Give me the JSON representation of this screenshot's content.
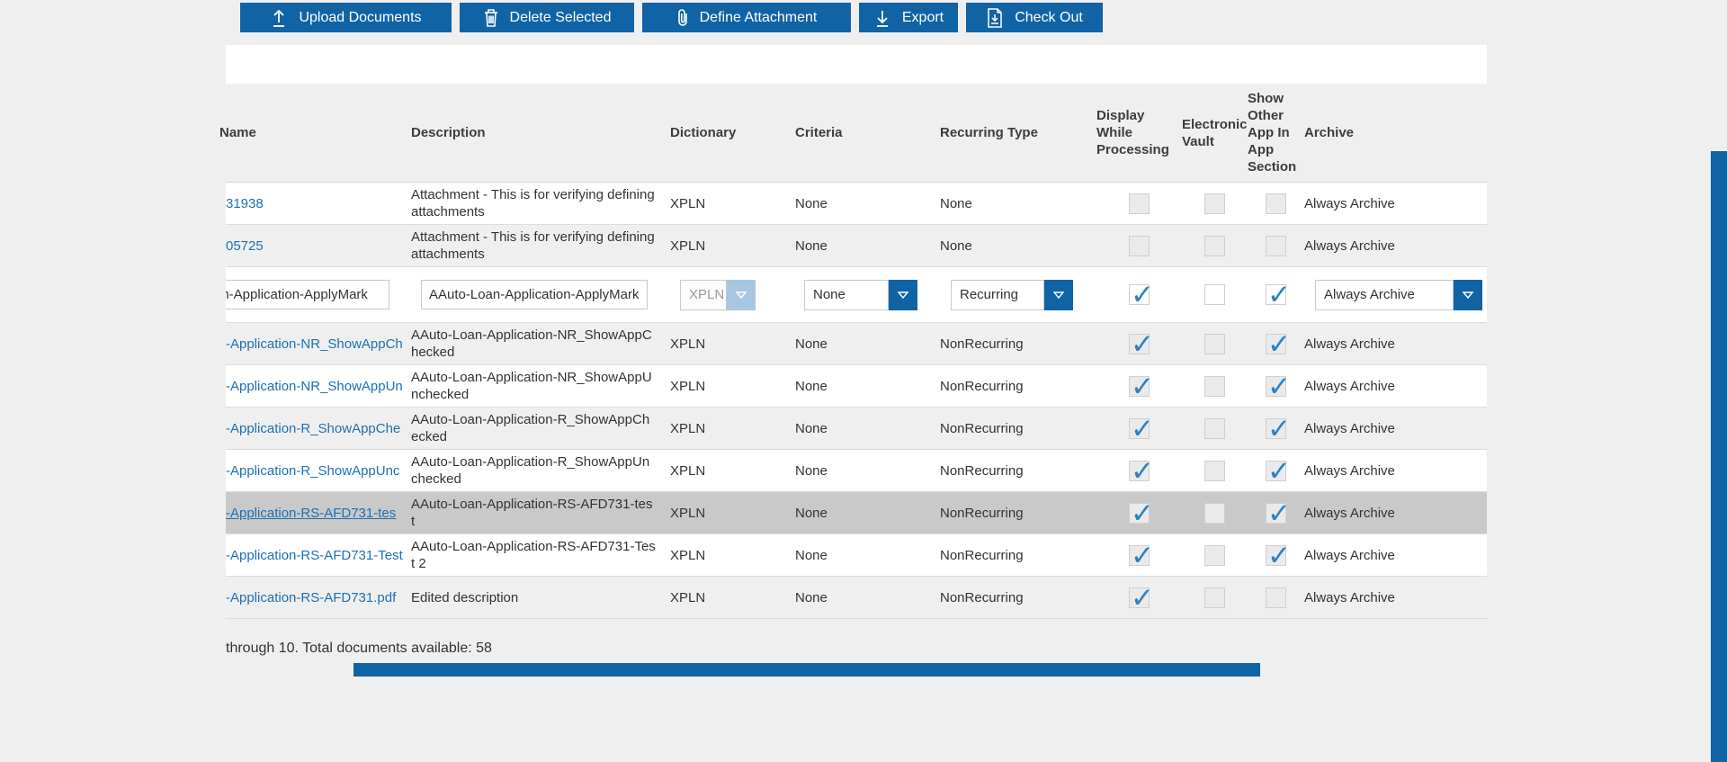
{
  "toolbar": {
    "buttons": [
      {
        "label": "Upload Documents",
        "icon": "upload-icon"
      },
      {
        "label": "Delete Selected",
        "icon": "trash-icon"
      },
      {
        "label": "Define Attachment",
        "icon": "paperclip-icon"
      },
      {
        "label": "Export",
        "icon": "download-icon"
      },
      {
        "label": "Check Out",
        "icon": "checkout-icon"
      }
    ]
  },
  "table": {
    "columns": [
      "Name",
      "Description",
      "Dictionary",
      "Criteria",
      "Recurring Type",
      "Display While Processing",
      "Electronic Vault",
      "Show Other App In App Section",
      "Archive"
    ],
    "rows": [
      {
        "type": "data",
        "shade": "white",
        "name": "31938",
        "description": "Attachment - This is for verifying defining attachments",
        "dictionary": "XPLN",
        "criteria": "None",
        "recurring": "None",
        "display": false,
        "vault": false,
        "show_other": false,
        "archive": "Always Archive"
      },
      {
        "type": "data",
        "shade": "gray",
        "name": "05725",
        "description": "Attachment - This is for verifying defining attachments",
        "dictionary": "XPLN",
        "criteria": "None",
        "recurring": "None",
        "display": false,
        "vault": false,
        "show_other": false,
        "archive": "Always Archive"
      },
      {
        "type": "edit",
        "shade": "white",
        "name_value": "an-Application-ApplyMark",
        "description_value": "AAuto-Loan-Application-ApplyMark",
        "dictionary_value": "XPLN",
        "criteria_value": "None",
        "recurring_value": "Recurring",
        "display": true,
        "vault": false,
        "show_other": true,
        "archive_value": "Always Archive"
      },
      {
        "type": "data",
        "shade": "gray",
        "name": "-Application-NR_ShowAppCh",
        "description": "AAuto-Loan-Application-NR_ShowAppChecked",
        "dictionary": "XPLN",
        "criteria": "None",
        "recurring": "NonRecurring",
        "display": true,
        "vault": false,
        "show_other": true,
        "archive": "Always Archive"
      },
      {
        "type": "data",
        "shade": "white",
        "name": "-Application-NR_ShowAppUn",
        "description": "AAuto-Loan-Application-NR_ShowAppUnchecked",
        "dictionary": "XPLN",
        "criteria": "None",
        "recurring": "NonRecurring",
        "display": true,
        "vault": false,
        "show_other": true,
        "archive": "Always Archive"
      },
      {
        "type": "data",
        "shade": "gray",
        "name": "-Application-R_ShowAppChe",
        "description": "AAuto-Loan-Application-R_ShowAppChecked",
        "dictionary": "XPLN",
        "criteria": "None",
        "recurring": "NonRecurring",
        "display": true,
        "vault": false,
        "show_other": true,
        "archive": "Always Archive"
      },
      {
        "type": "data",
        "shade": "white",
        "name": "-Application-R_ShowAppUnc",
        "description": "AAuto-Loan-Application-R_ShowAppUnchecked",
        "dictionary": "XPLN",
        "criteria": "None",
        "recurring": "NonRecurring",
        "display": true,
        "vault": false,
        "show_other": true,
        "archive": "Always Archive"
      },
      {
        "type": "data",
        "shade": "selected",
        "name": "-Application-RS-AFD731-tes",
        "description": "AAuto-Loan-Application-RS-AFD731-test",
        "dictionary": "XPLN",
        "criteria": "None",
        "recurring": "NonRecurring",
        "display": true,
        "vault": false,
        "show_other": true,
        "archive": "Always Archive"
      },
      {
        "type": "data",
        "shade": "white",
        "name": "-Application-RS-AFD731-Test",
        "description": "AAuto-Loan-Application-RS-AFD731-Test 2",
        "dictionary": "XPLN",
        "criteria": "None",
        "recurring": "NonRecurring",
        "display": true,
        "vault": false,
        "show_other": true,
        "archive": "Always Archive"
      },
      {
        "type": "data",
        "shade": "gray",
        "name": "-Application-RS-AFD731.pdf",
        "description": "Edited description",
        "dictionary": "XPLN",
        "criteria": "None",
        "recurring": "NonRecurring",
        "display": true,
        "vault": false,
        "show_other": false,
        "archive": "Always Archive"
      }
    ]
  },
  "footer": {
    "summary": "through 10. Total documents available: 58"
  },
  "colors": {
    "accent_blue": "#1063a5",
    "link_blue": "#1c70b7",
    "check_blue": "#2d80c2",
    "selected_row": "#c9c9c9",
    "disabled_chevron": "#a9c6e1",
    "page_background": "#efefef"
  }
}
